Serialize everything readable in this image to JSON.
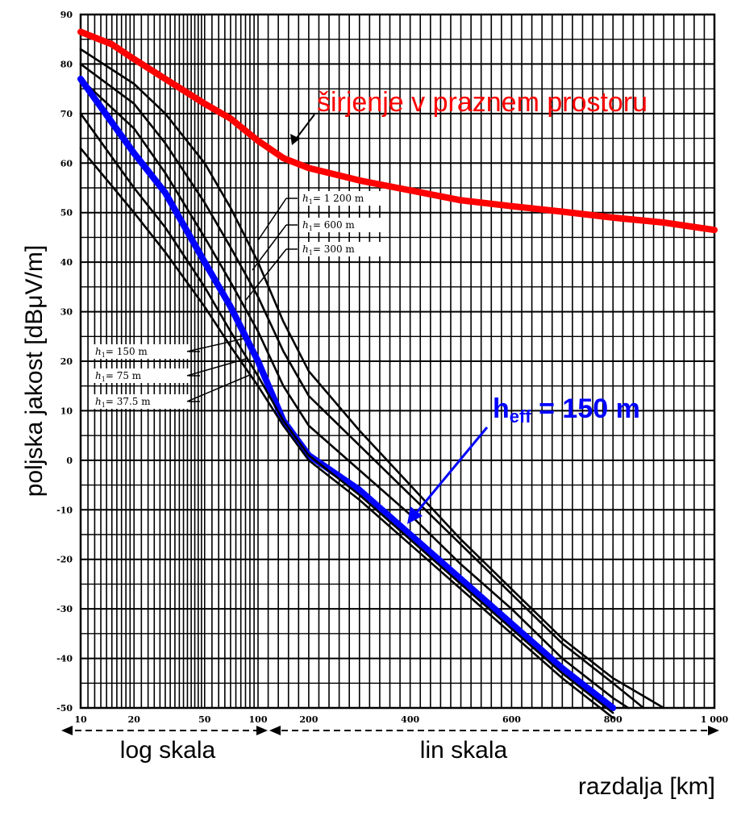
{
  "chart_data": {
    "type": "line",
    "ylabel": "poljska jakost [dBμV/m]",
    "xlabel": "razdalja [km]",
    "x_ticks": [
      "10",
      "20",
      "50",
      "100",
      "200",
      "400",
      "600",
      "800",
      "1 000"
    ],
    "y_ticks": [
      "90",
      "80",
      "70",
      "60",
      "50",
      "40",
      "30",
      "20",
      "10",
      "0",
      "-10",
      "-20",
      "-30",
      "-40",
      "-50"
    ],
    "xlim": [
      10,
      1000
    ],
    "ylim": [
      -50,
      90
    ],
    "x_scale": "log 10–100 km, linear 100–1000 km",
    "grid": true,
    "scale_labels": {
      "log": "log skala",
      "lin": "lin skala"
    },
    "annotations": {
      "free_space": "širjenje v praznem prostoru",
      "heff_main": "h",
      "heff_sub": "eff",
      "heff_value": " = 150 m"
    },
    "curve_labels": [
      {
        "prefix": "h",
        "sub": "1",
        "text": "= 1 200 m"
      },
      {
        "prefix": "h",
        "sub": "1",
        "text": "=   600 m"
      },
      {
        "prefix": "h",
        "sub": "1",
        "text": "=   300 m"
      },
      {
        "prefix": "h",
        "sub": "1",
        "text": "= 150   m"
      },
      {
        "prefix": "h",
        "sub": "1",
        "text": "=   75   m"
      },
      {
        "prefix": "h",
        "sub": "1",
        "text": "=   37.5  m"
      }
    ],
    "series": [
      {
        "name": "širjenje v praznem prostoru",
        "color": "#ff0000",
        "x": [
          10,
          15,
          20,
          30,
          50,
          70,
          100,
          150,
          200,
          300,
          400,
          500,
          600,
          700,
          800,
          900,
          1000
        ],
        "y": [
          86.5,
          84,
          81,
          77,
          72,
          69,
          64.5,
          61,
          59,
          56.5,
          54.5,
          52.5,
          51.3,
          50.2,
          49,
          48,
          46.5
        ]
      },
      {
        "name": "h1 = 1 200 m",
        "color": "#000000",
        "x": [
          10,
          20,
          30,
          50,
          70,
          100,
          150,
          200,
          300,
          400,
          500,
          600,
          700,
          800,
          900
        ],
        "y": [
          83,
          76,
          70,
          60,
          51,
          40,
          28,
          18,
          6,
          -5,
          -16,
          -26,
          -36,
          -44,
          -50
        ]
      },
      {
        "name": "h1 = 600 m",
        "color": "#000000",
        "x": [
          10,
          20,
          30,
          50,
          70,
          100,
          150,
          200,
          300,
          400,
          500,
          600,
          700,
          800,
          860
        ],
        "y": [
          80,
          72,
          64,
          52,
          43,
          33,
          22,
          13,
          3,
          -7,
          -17,
          -27,
          -37,
          -45,
          -50
        ]
      },
      {
        "name": "h1 = 300 m",
        "color": "#000000",
        "x": [
          10,
          20,
          30,
          50,
          70,
          100,
          150,
          200,
          300,
          400,
          500,
          600,
          700,
          800,
          830
        ],
        "y": [
          77,
          67,
          58,
          45,
          36,
          26,
          15,
          7,
          -2,
          -11,
          -21,
          -30,
          -40,
          -48,
          -50
        ]
      },
      {
        "name": "h1 = 150 m",
        "color": "#0000ff",
        "x": [
          10,
          20,
          30,
          50,
          70,
          100,
          150,
          200,
          300,
          400,
          500,
          600,
          700,
          800
        ],
        "y": [
          77,
          62,
          54,
          40,
          31,
          20,
          8,
          1,
          -6,
          -15,
          -24,
          -33,
          -42,
          -50
        ]
      },
      {
        "name": "h1 = 75 m",
        "color": "#000000",
        "x": [
          10,
          20,
          30,
          50,
          70,
          100,
          150,
          200,
          300,
          400,
          500,
          600,
          700,
          800
        ],
        "y": [
          70,
          55,
          47,
          35,
          26,
          17,
          8,
          1,
          -7,
          -16,
          -25,
          -34,
          -43,
          -51
        ]
      },
      {
        "name": "h1 = 37.5 m",
        "color": "#000000",
        "x": [
          10,
          20,
          30,
          50,
          70,
          100,
          150,
          200,
          300,
          400,
          500,
          600,
          700,
          800
        ],
        "y": [
          63,
          50,
          42,
          31,
          23,
          15,
          7,
          0,
          -8,
          -17,
          -26,
          -35,
          -44,
          -52
        ]
      }
    ],
    "label_anchor_x": [
      105,
      100,
      95,
      85,
      80,
      75
    ],
    "label_leader_from": [
      [
        1200,
        51
      ],
      [
        600,
        47
      ],
      [
        300,
        42
      ],
      [
        150,
        21
      ],
      [
        75,
        17
      ],
      [
        37.5,
        12
      ]
    ]
  }
}
